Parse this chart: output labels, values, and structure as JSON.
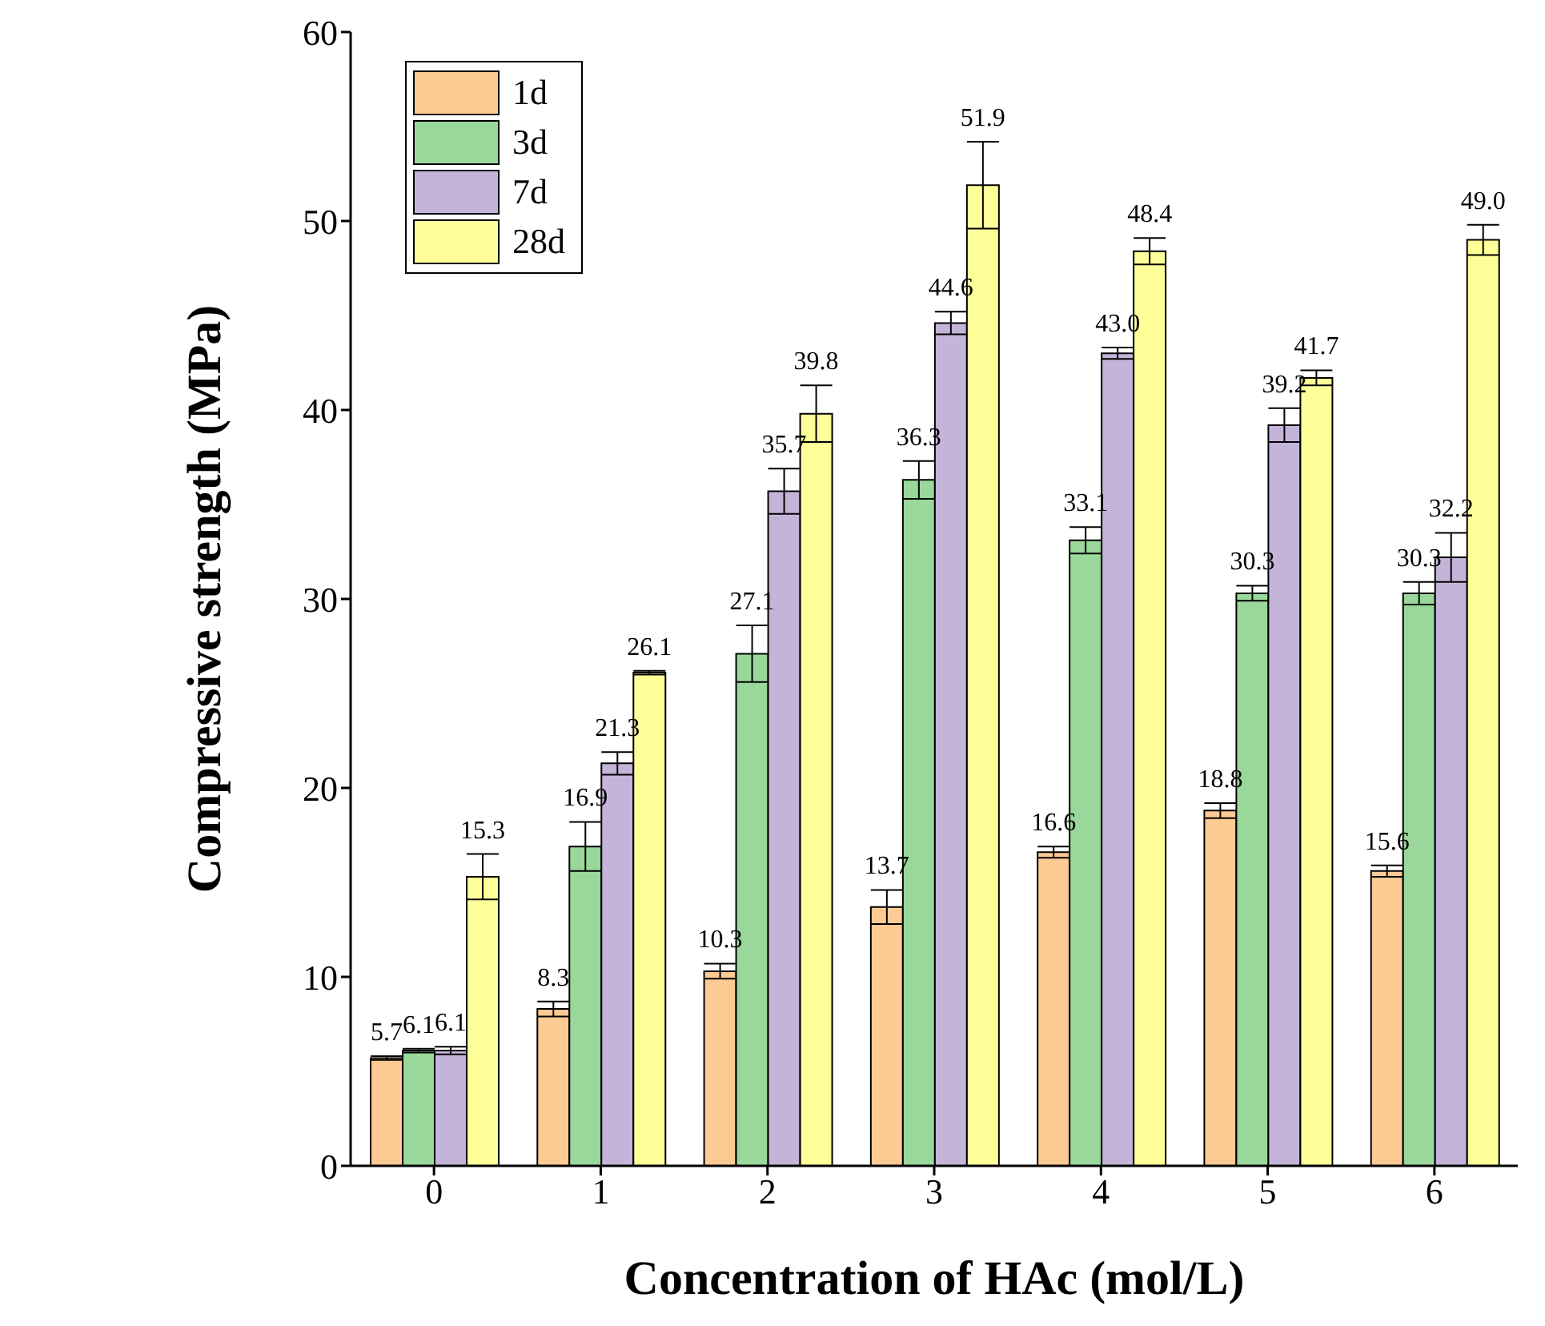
{
  "chart_data": {
    "type": "bar",
    "xlabel": "Concentration of HAc (mol/L)",
    "ylabel": "Compressive strength (MPa)",
    "categories": [
      "0",
      "1",
      "2",
      "3",
      "4",
      "5",
      "6"
    ],
    "series": [
      {
        "name": "1d",
        "color": "#fdca93",
        "values": [
          5.7,
          8.3,
          10.3,
          13.7,
          16.6,
          18.8,
          15.6
        ],
        "errors": [
          0.1,
          0.4,
          0.4,
          0.9,
          0.3,
          0.4,
          0.3
        ],
        "value_labels": [
          "5.7",
          "8.3",
          "10.3",
          "13.7",
          "16.6",
          "18.8",
          "15.6"
        ]
      },
      {
        "name": "3d",
        "color": "#99d89a",
        "values": [
          6.1,
          16.9,
          27.1,
          36.3,
          33.1,
          30.3,
          30.3
        ],
        "errors": [
          0.1,
          1.3,
          1.5,
          1.0,
          0.7,
          0.4,
          0.6
        ],
        "value_labels": [
          "6.1",
          "16.9",
          "27.1",
          "36.3",
          "33.1",
          "30.3",
          "30.3"
        ]
      },
      {
        "name": "7d",
        "color": "#c5b4d9",
        "values": [
          6.1,
          21.3,
          35.7,
          44.6,
          43.0,
          39.2,
          32.2
        ],
        "errors": [
          0.2,
          0.6,
          1.2,
          0.6,
          0.3,
          0.9,
          1.3
        ],
        "value_labels": [
          "6.1",
          "21.3",
          "35.7",
          "44.6",
          "43.0",
          "39.2",
          "32.2"
        ]
      },
      {
        "name": "28d",
        "color": "#ffff99",
        "values": [
          15.3,
          26.1,
          39.8,
          51.9,
          48.4,
          41.7,
          49.0
        ],
        "errors": [
          1.2,
          0.1,
          1.5,
          2.3,
          0.7,
          0.4,
          0.8
        ],
        "value_labels": [
          "15.3",
          "26.1",
          "39.8",
          "51.9",
          "48.4",
          "41.7",
          "49.0"
        ]
      }
    ],
    "ylim": [
      0,
      60
    ],
    "yticks": [
      0,
      10,
      20,
      30,
      40,
      50,
      60
    ],
    "legend": "top left",
    "grid": false
  }
}
